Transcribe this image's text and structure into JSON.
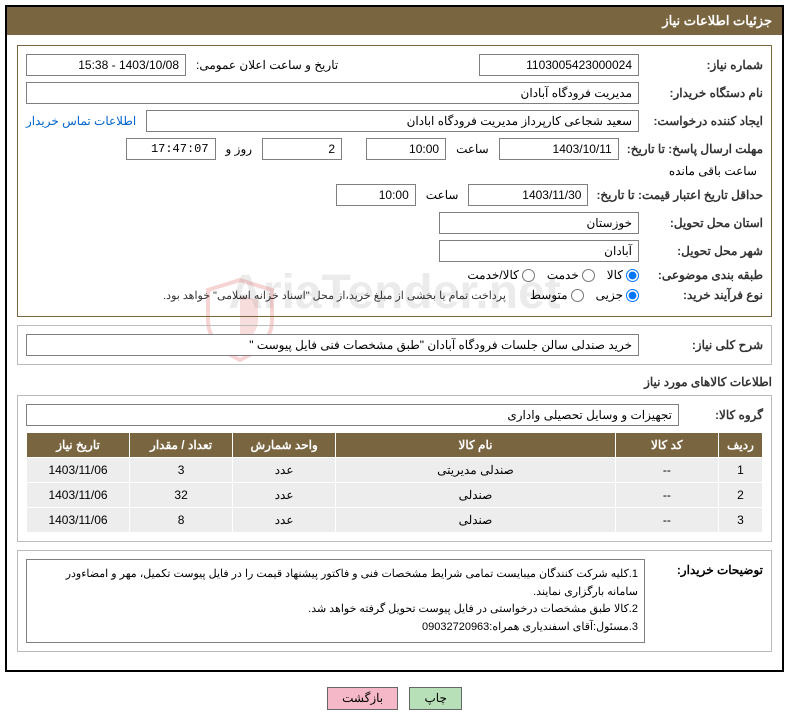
{
  "header_title": "جزئیات اطلاعات نیاز",
  "watermark_text": "AriaTender.net",
  "labels": {
    "need_no": "شماره نیاز:",
    "announce_dt": "تاریخ و ساعت اعلان عمومی:",
    "buyer_org": "نام دستگاه خریدار:",
    "requester": "ایجاد کننده درخواست:",
    "contact_link": "اطلاعات تماس خریدار",
    "reply_deadline": "مهلت ارسال پاسخ: تا تاریخ:",
    "at_time": "ساعت",
    "days_and": "روز و",
    "remaining": "ساعت باقی مانده",
    "price_validity": "حداقل تاریخ اعتبار قیمت: تا تاریخ:",
    "delivery_province": "استان محل تحویل:",
    "delivery_city": "شهر محل تحویل:",
    "classification": "طبقه بندی موضوعی:",
    "purchase_type": "نوع فرآیند خرید:",
    "payment_note": "پرداخت تمام یا بخشی از مبلغ خرید،از محل \"اسناد خزانه اسلامی\" خواهد بود.",
    "summary": "شرح کلی نیاز:",
    "goods_info": "اطلاعات کالاهای مورد نیاز",
    "goods_group": "گروه کالا:",
    "buyer_notes": "توضیحات خریدار:"
  },
  "values": {
    "need_no": "1103005423000024",
    "announce_dt": "1403/10/08 - 15:38",
    "buyer_org": "مدیریت فرودگاه آبادان",
    "requester": "سعید شجاعی کارپرداز مدیریت فرودگاه ابادان",
    "reply_date": "1403/10/11",
    "reply_time": "10:00",
    "remaining_days": "2",
    "remaining_time": "17:47:07",
    "validity_date": "1403/11/30",
    "validity_time": "10:00",
    "province": "خوزستان",
    "city": "آبادان",
    "summary_text": "خرید صندلی سالن جلسات فرودگاه آبادان \"طبق مشخصات فنی فایل پیوست \"",
    "goods_group_text": "تجهیزات و وسایل تحصیلی واداری",
    "notes_text": "1.کلیه شرکت کنندگان میبایست تمامی شرایط مشخصات فنی و فاکتور پیشنهاد قیمت را در فایل پیوست تکمیل، مهر و امضاءودر سامانه بارگزاری نمایند.\n2.کالا طبق مشخصات درخواستی در فایل پیوست تحویل گرفته خواهد شد.\n3.مسئول:آقای اسفندیاری همراه:09032720963"
  },
  "radios": {
    "class_options": [
      "کالا",
      "خدمت",
      "کالا/خدمت"
    ],
    "class_selected": 0,
    "type_options": [
      "جزیی",
      "متوسط"
    ],
    "type_selected": 0
  },
  "table": {
    "headers": [
      "ردیف",
      "کد کالا",
      "نام کالا",
      "واحد شمارش",
      "تعداد / مقدار",
      "تاریخ نیاز"
    ],
    "col_widths": [
      "6%",
      "14%",
      "38%",
      "14%",
      "14%",
      "14%"
    ],
    "rows": [
      [
        "1",
        "--",
        "صندلی مدیریتی",
        "عدد",
        "3",
        "1403/11/06"
      ],
      [
        "2",
        "--",
        "صندلی",
        "عدد",
        "32",
        "1403/11/06"
      ],
      [
        "3",
        "--",
        "صندلی",
        "عدد",
        "8",
        "1403/11/06"
      ]
    ]
  },
  "buttons": {
    "print": "چاپ",
    "back": "بازگشت"
  },
  "colors": {
    "brand": "#7a6541",
    "row_bg": "#ededed"
  }
}
